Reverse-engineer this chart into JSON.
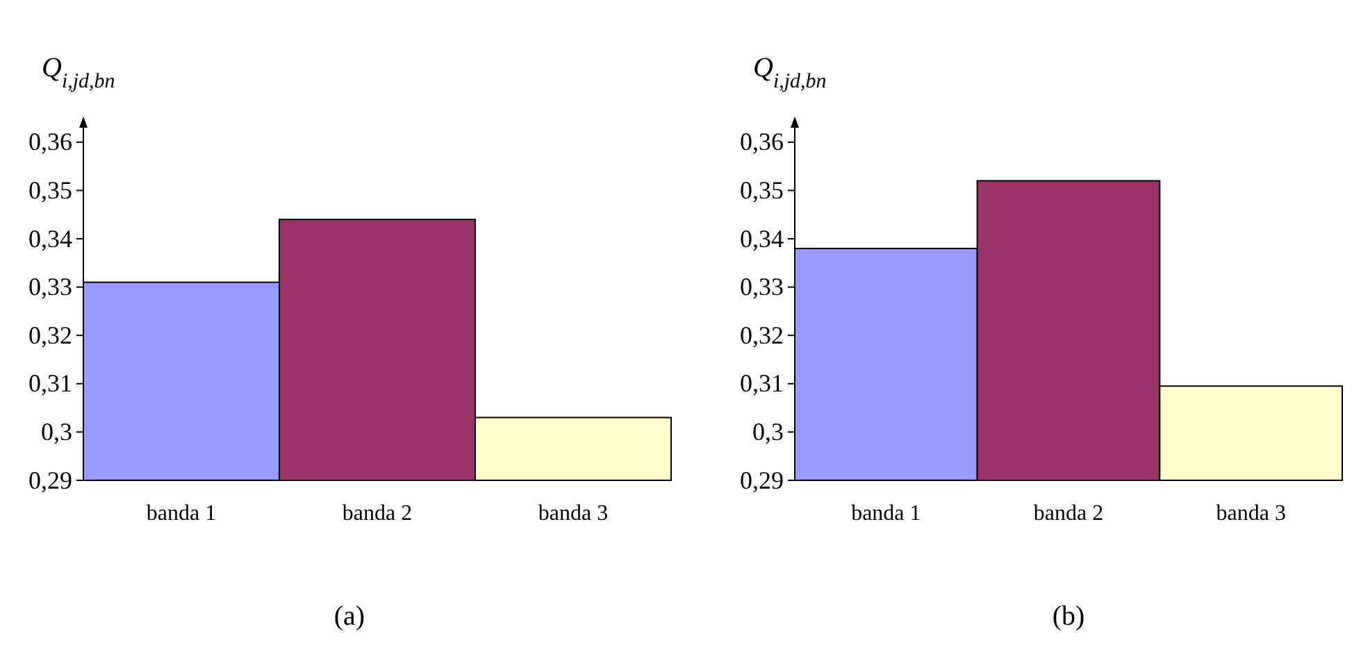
{
  "chart_data": [
    {
      "type": "bar",
      "title": "(a)",
      "ylabel": "Q$_{i,jd,bn}$",
      "categories": [
        "banda 1",
        "banda 2",
        "banda 3"
      ],
      "values": [
        0.331,
        0.344,
        0.303
      ],
      "colors": [
        "#9999ff",
        "#993366",
        "#ffffcc"
      ],
      "ylim": [
        0.29,
        0.365
      ],
      "yticks": [
        {
          "value": 0.29,
          "label": "0,29"
        },
        {
          "value": 0.3,
          "label": "0,3"
        },
        {
          "value": 0.31,
          "label": "0,31"
        },
        {
          "value": 0.32,
          "label": "0,32"
        },
        {
          "value": 0.33,
          "label": "0,33"
        },
        {
          "value": 0.34,
          "label": "0,34"
        },
        {
          "value": 0.35,
          "label": "0,35"
        },
        {
          "value": 0.36,
          "label": "0,36"
        }
      ],
      "grid": false
    },
    {
      "type": "bar",
      "title": "(b)",
      "ylabel": "Q$_{i,jd,bn}$",
      "categories": [
        "banda 1",
        "banda 2",
        "banda 3"
      ],
      "values": [
        0.338,
        0.352,
        0.3095
      ],
      "colors": [
        "#9999ff",
        "#993366",
        "#ffffcc"
      ],
      "ylim": [
        0.29,
        0.365
      ],
      "yticks": [
        {
          "value": 0.29,
          "label": "0,29"
        },
        {
          "value": 0.3,
          "label": "0,3"
        },
        {
          "value": 0.31,
          "label": "0,31"
        },
        {
          "value": 0.32,
          "label": "0,32"
        },
        {
          "value": 0.33,
          "label": "0,33"
        },
        {
          "value": 0.34,
          "label": "0,34"
        },
        {
          "value": 0.35,
          "label": "0,35"
        },
        {
          "value": 0.36,
          "label": "0,36"
        }
      ],
      "grid": false
    }
  ]
}
